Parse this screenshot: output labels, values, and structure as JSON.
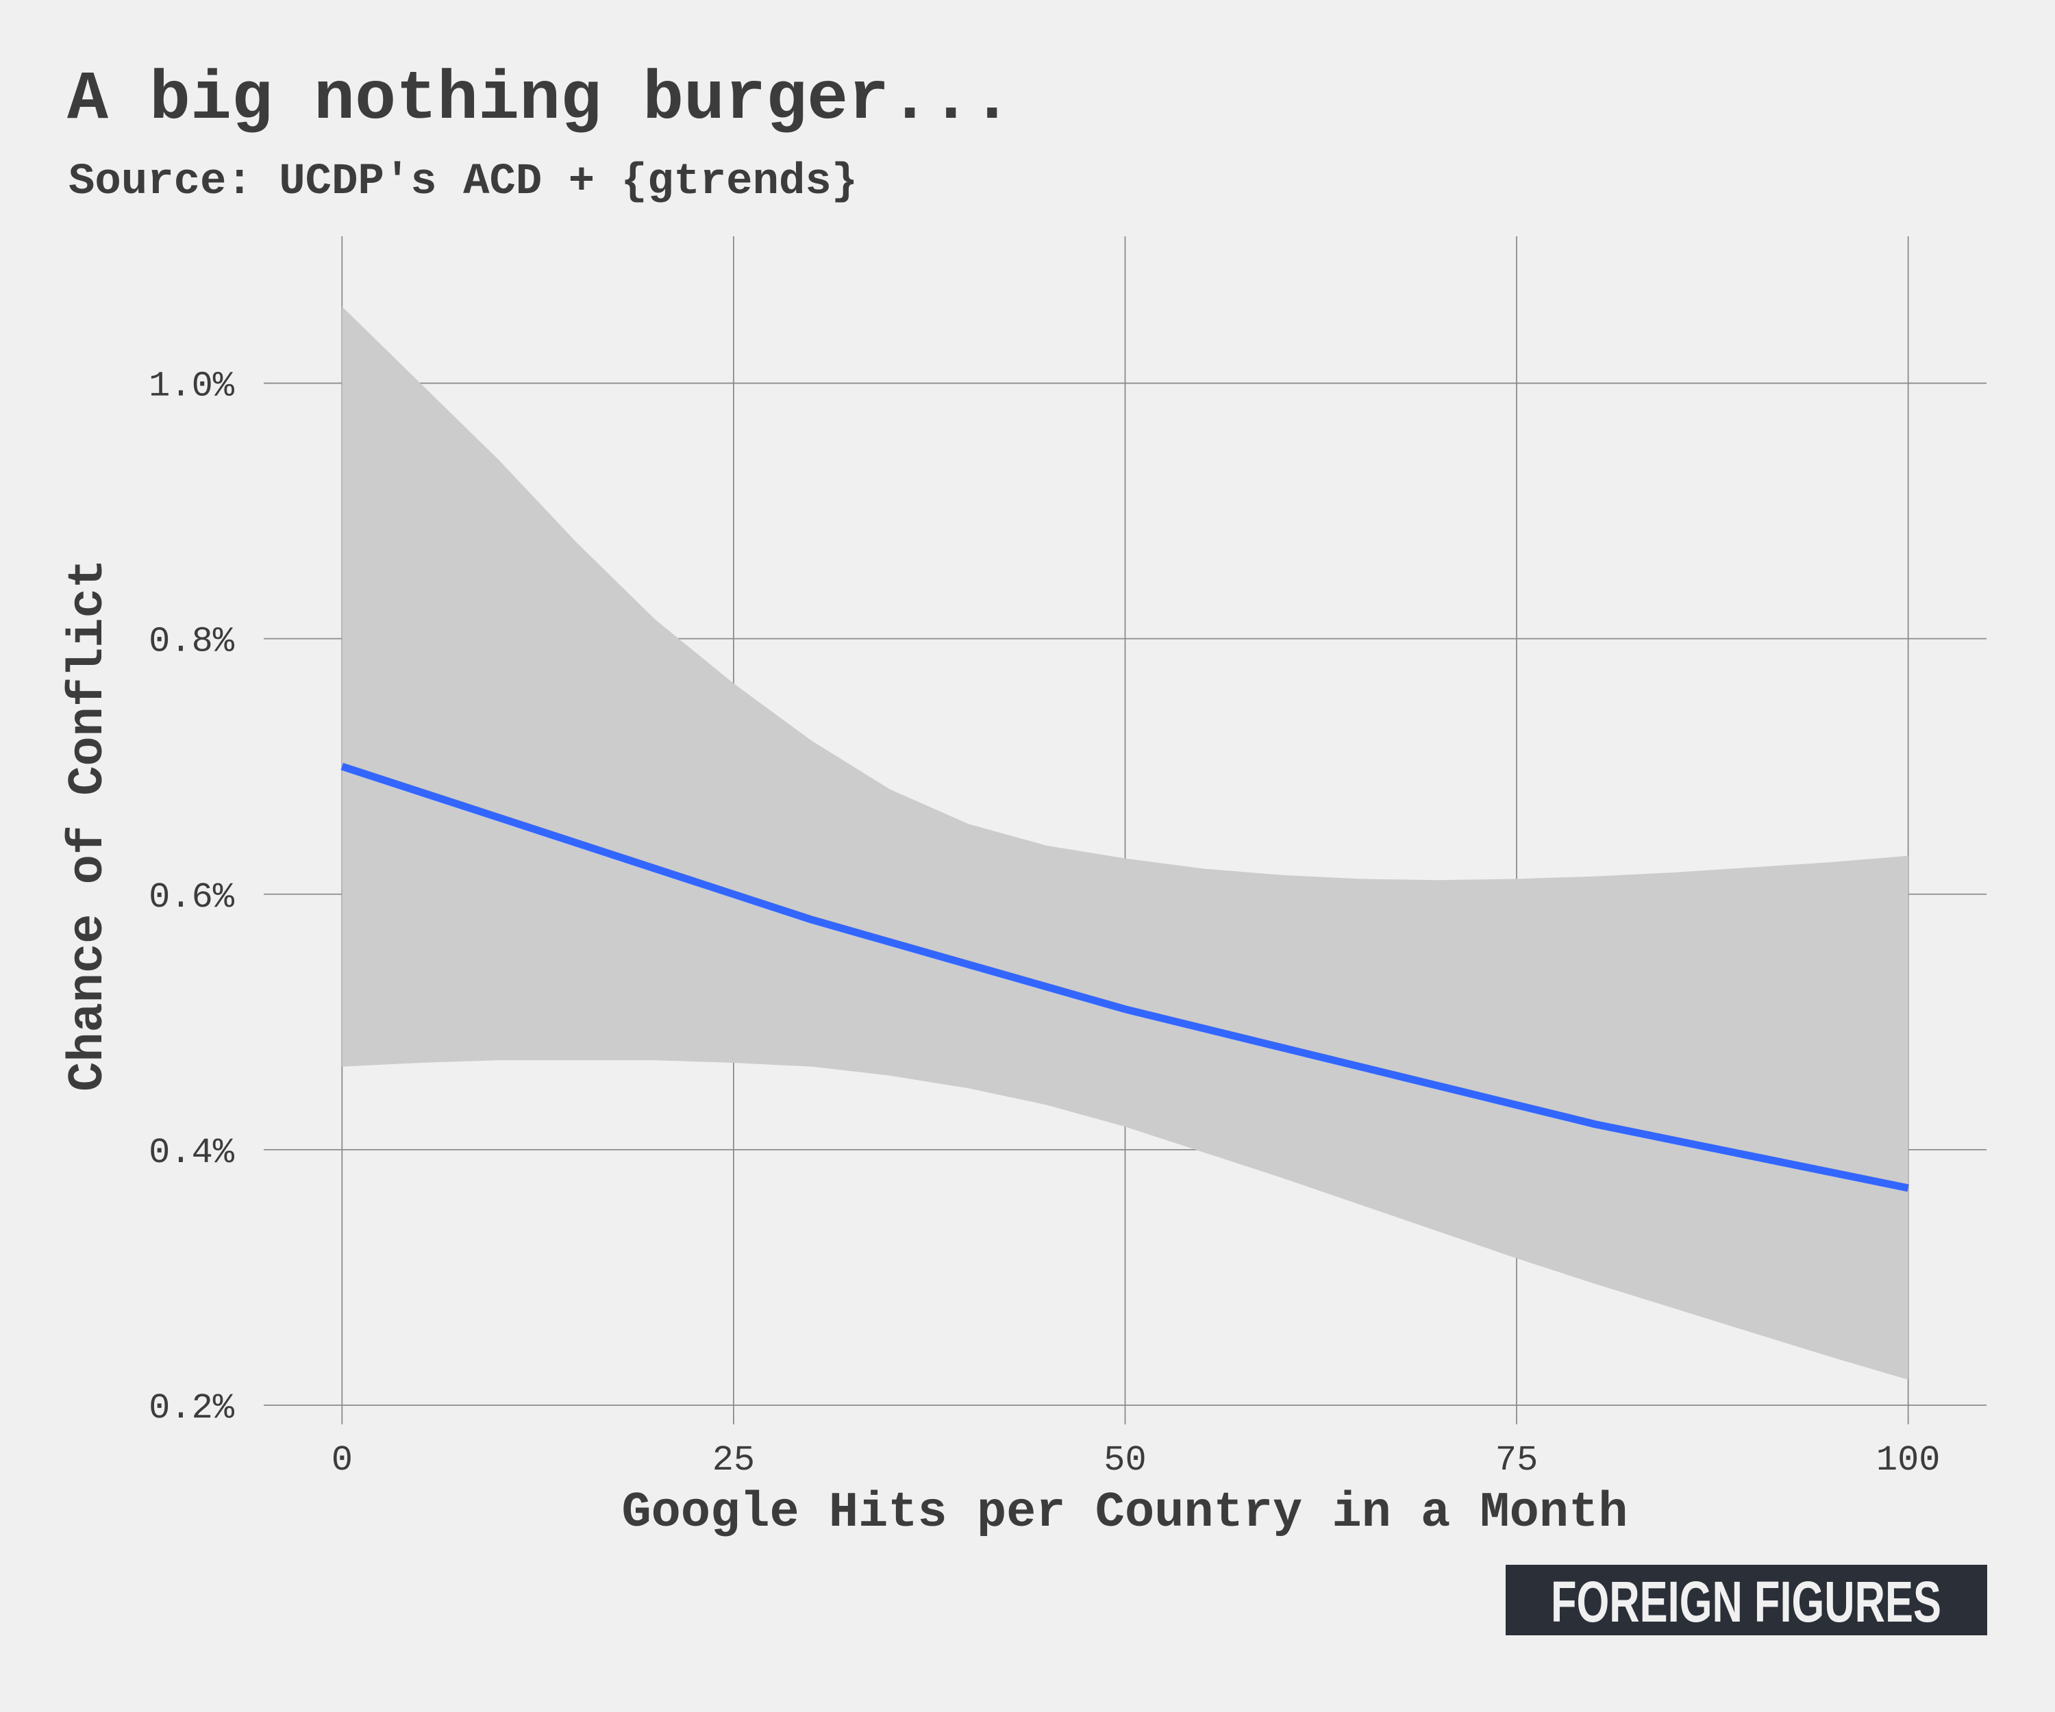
{
  "chart_data": {
    "type": "line",
    "title": "A big nothing burger...",
    "subtitle": "Source: UCDP's ACD + {gtrends}",
    "xlabel": "Google Hits per Country in a Month",
    "ylabel": "Chance of Conflict",
    "xlim": [
      -5,
      105
    ],
    "ylim": [
      0.185,
      1.115
    ],
    "x_ticks": [
      0,
      25,
      50,
      75,
      100
    ],
    "x_tick_labels": [
      "0",
      "25",
      "50",
      "75",
      "100"
    ],
    "y_ticks": [
      0.2,
      0.4,
      0.6,
      0.8,
      1.0
    ],
    "y_tick_labels": [
      "0.2%",
      "0.4%",
      "0.6%",
      "0.8%",
      "1.0%"
    ],
    "grid": true,
    "colors": {
      "line": "#3366ff",
      "band": "#cccccc",
      "background": "#f0f0f0",
      "text": "#3c3c3c"
    },
    "series": [
      {
        "x": [
          0,
          10,
          20,
          25,
          30,
          40,
          50,
          60,
          70,
          75,
          80,
          90,
          100
        ],
        "y": [
          0.7,
          0.66,
          0.62,
          0.6,
          0.58,
          0.545,
          0.51,
          0.48,
          0.45,
          0.435,
          0.42,
          0.395,
          0.37
        ]
      }
    ],
    "confidence_band": {
      "x": [
        0,
        5,
        10,
        15,
        20,
        25,
        30,
        35,
        40,
        45,
        50,
        55,
        60,
        65,
        70,
        75,
        80,
        85,
        90,
        95,
        100
      ],
      "lower": [
        0.465,
        0.468,
        0.47,
        0.47,
        0.47,
        0.468,
        0.465,
        0.458,
        0.448,
        0.435,
        0.418,
        0.398,
        0.378,
        0.357,
        0.336,
        0.315,
        0.295,
        0.276,
        0.257,
        0.238,
        0.22
      ],
      "upper": [
        1.06,
        1.0,
        0.94,
        0.875,
        0.815,
        0.765,
        0.72,
        0.682,
        0.655,
        0.638,
        0.628,
        0.62,
        0.615,
        0.612,
        0.611,
        0.612,
        0.614,
        0.617,
        0.621,
        0.625,
        0.63
      ]
    }
  },
  "logo": {
    "text": "FOREIGN FIGURES"
  }
}
